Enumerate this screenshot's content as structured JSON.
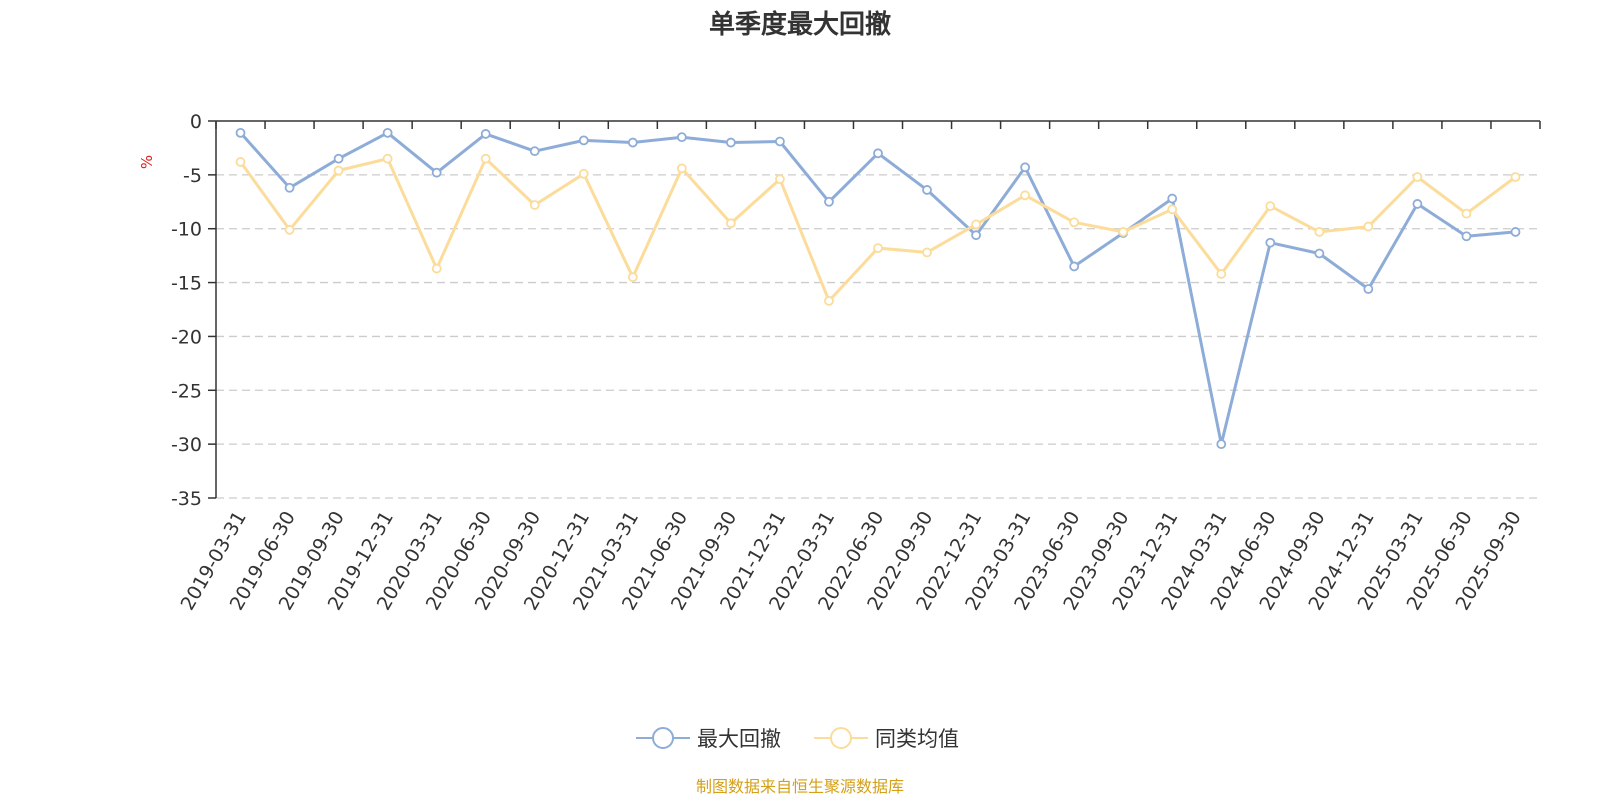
{
  "chart_data": {
    "type": "line",
    "title": "单季度最大回撤",
    "ylabel": "%",
    "ylim": [
      -35,
      0
    ],
    "yticks": [
      0,
      -5,
      -10,
      -15,
      -20,
      -25,
      -30,
      -35
    ],
    "grid": true,
    "legend_position": "bottom",
    "categories": [
      "2019-03-31",
      "2019-06-30",
      "2019-09-30",
      "2019-12-31",
      "2020-03-31",
      "2020-06-30",
      "2020-09-30",
      "2020-12-31",
      "2021-03-31",
      "2021-06-30",
      "2021-09-30",
      "2021-12-31",
      "2022-03-31",
      "2022-06-30",
      "2022-09-30",
      "2022-12-31",
      "2023-03-31",
      "2023-06-30",
      "2023-09-30",
      "2023-12-31",
      "2024-03-31",
      "2024-06-30",
      "2024-09-30",
      "2024-12-31",
      "2025-03-31",
      "2025-06-30",
      "2025-09-30"
    ],
    "series": [
      {
        "name": "最大回撤",
        "color": "#8eacd8",
        "values": [
          -1.1,
          -6.2,
          -3.5,
          -1.1,
          -4.8,
          -1.2,
          -2.8,
          -1.8,
          -2.0,
          -1.5,
          -2.0,
          -1.9,
          -7.5,
          -3.0,
          -6.4,
          -10.6,
          -4.3,
          -13.5,
          -10.4,
          -7.2,
          -30.0,
          -11.3,
          -12.3,
          -15.6,
          -7.7,
          -10.7,
          -10.3
        ]
      },
      {
        "name": "同类均值",
        "color": "#fcdc9a",
        "values": [
          -3.8,
          -10.1,
          -4.6,
          -3.5,
          -13.7,
          -3.5,
          -7.8,
          -4.9,
          -14.5,
          -4.4,
          -9.5,
          -5.4,
          -16.7,
          -11.8,
          -12.2,
          -9.6,
          -6.9,
          -9.4,
          -10.3,
          -8.2,
          -14.2,
          -7.9,
          -10.3,
          -9.8,
          -5.2,
          -8.6,
          -5.2
        ]
      }
    ],
    "source_note": "制图数据来自恒生聚源数据库",
    "source_color": "#d4a017",
    "unit_color": "#e02020",
    "axis_color": "#333333",
    "grid_color": "#cccccc"
  }
}
